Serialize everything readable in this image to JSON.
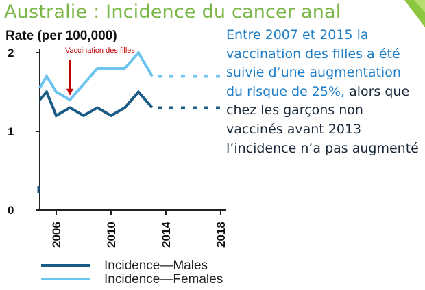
{
  "slide": {
    "title": "Australie : Incidence du cancer anal",
    "paragraph": {
      "highlight": "Entre 2007 et 2015 la vaccination des filles a été suivie d’une augmentation du risque de 25%,",
      "rest": " alors que chez les garçons non vaccinés avant 2013 l’incidence n’a pas augmenté"
    }
  },
  "colors": {
    "title": "#7ab648",
    "males": "#1a5c86",
    "females": "#6cc4ef",
    "highlight_text": "#1e7ec8",
    "annotation": "#c00000"
  },
  "chart_data": {
    "type": "line",
    "ylabel": "Rate (per 100,000)",
    "x_ticks": [
      2006,
      2010,
      2014,
      2018
    ],
    "y_ticks": [
      0,
      1,
      2
    ],
    "xlim": [
      2004.8,
      2019.5
    ],
    "ylim": [
      0,
      2.05
    ],
    "series": [
      {
        "name": "Incidence—Males",
        "x": [
          2004.8,
          2005.3,
          2006,
          2007,
          2008,
          2009,
          2010,
          2011,
          2012,
          2013
        ],
        "y": [
          1.4,
          1.5,
          1.2,
          1.3,
          1.2,
          1.3,
          1.2,
          1.3,
          1.5,
          1.3
        ],
        "projection": {
          "x": [
            2013.4,
            2018
          ],
          "y": [
            1.3,
            1.3
          ]
        }
      },
      {
        "name": "Incidence—Females",
        "x": [
          2004.8,
          2005.3,
          2006,
          2007,
          2008,
          2009,
          2010,
          2011,
          2012,
          2013
        ],
        "y": [
          1.55,
          1.7,
          1.5,
          1.4,
          1.6,
          1.8,
          1.8,
          1.8,
          2.0,
          1.7
        ],
        "projection": {
          "x": [
            2013.4,
            2018
          ],
          "y": [
            1.7,
            1.7
          ]
        }
      }
    ],
    "annotation": {
      "text": "Vaccination des filles",
      "x": 2007,
      "y": 1.42
    }
  }
}
